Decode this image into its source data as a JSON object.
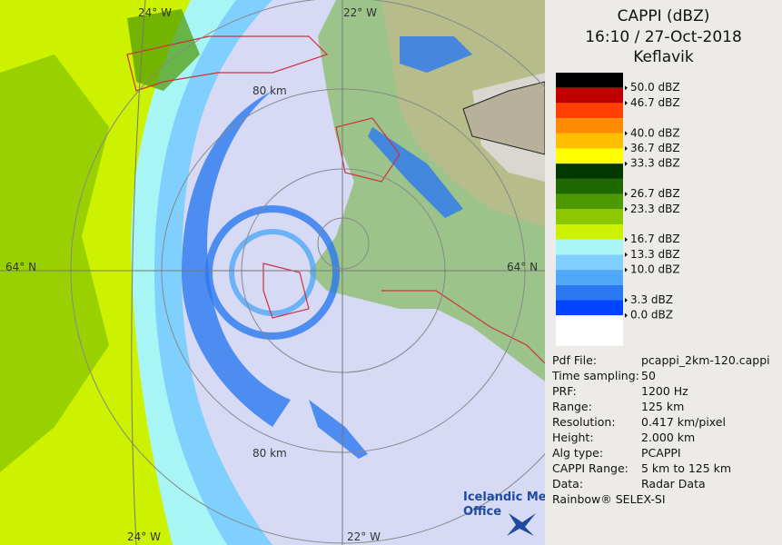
{
  "header": {
    "title": "CAPPI (dBZ)",
    "datetime": "16:10 / 27-Oct-2018",
    "station": "Keflavik"
  },
  "legend": {
    "bands": [
      {
        "color": "#000000",
        "label": "50.0 dBZ"
      },
      {
        "color": "#c00000",
        "label": "46.7 dBZ"
      },
      {
        "color": "#ff4000"
      },
      {
        "color": "#ff8c00",
        "label": "40.0 dBZ"
      },
      {
        "color": "#ffbf00",
        "label": "36.7 dBZ"
      },
      {
        "color": "#ffff00",
        "label": "33.3 dBZ"
      },
      {
        "color": "#003800"
      },
      {
        "color": "#1e6a00",
        "label": "26.7 dBZ"
      },
      {
        "color": "#4c9a00",
        "label": "23.3 dBZ"
      },
      {
        "color": "#8cc800"
      },
      {
        "color": "#ccf200",
        "label": "16.7 dBZ"
      },
      {
        "color": "#a8f5f5",
        "label": "13.3 dBZ"
      },
      {
        "color": "#80d0ff",
        "label": "10.0 dBZ"
      },
      {
        "color": "#50a8f8"
      },
      {
        "color": "#2a78f0",
        "label": "3.3 dBZ"
      },
      {
        "color": "#0044ff",
        "label": "0.0 dBZ"
      },
      {
        "color": "#ffffff"
      }
    ]
  },
  "info": {
    "rows": [
      [
        "Pdf File:",
        "pcappi_2km-120.cappi"
      ],
      [
        "Time sampling:",
        "50"
      ],
      [
        "PRF:",
        "1200 Hz"
      ],
      [
        "Range:",
        "125 km"
      ],
      [
        "Resolution:",
        "0.417 km/pixel"
      ],
      [
        "Height:",
        "2.000 km"
      ],
      [
        "Alg type:",
        "PCAPPI"
      ],
      [
        "CAPPI Range:",
        "5 km to 125 km"
      ],
      [
        "Data:",
        "Radar Data"
      ]
    ],
    "footer": "Rainbow® SELEX-SI"
  },
  "map": {
    "labels": {
      "lon_top_left": "24° W",
      "lon_top_right": "22° W",
      "lat_left": "64° N",
      "lat_right": "64° N",
      "ring_top": "80 km",
      "ring_bottom": "80 km",
      "lon_bottom_left": "24° W",
      "lon_bottom_right": "22° W"
    },
    "logo": [
      "Icelandic Met",
      "Office"
    ]
  }
}
